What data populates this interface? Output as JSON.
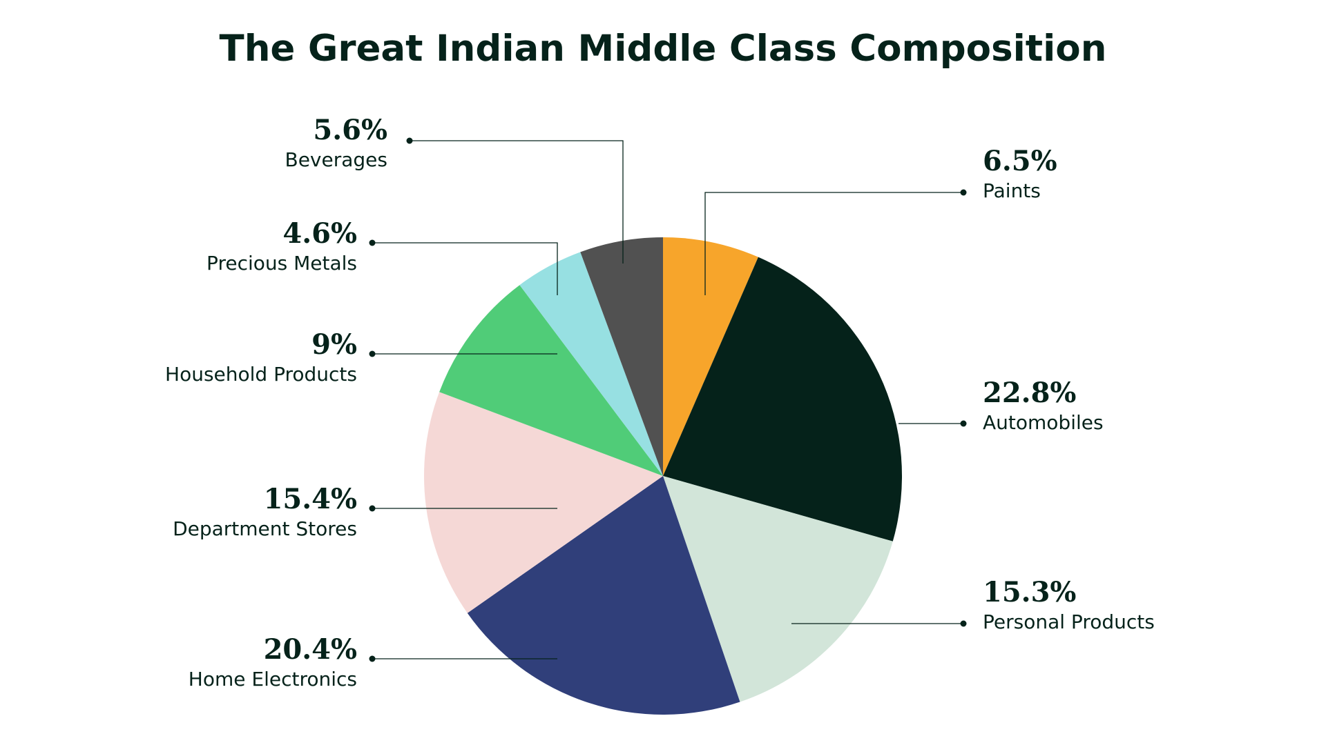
{
  "chart_data": {
    "type": "pie",
    "title": "The Great Indian Middle Class Composition",
    "slices": [
      {
        "label": "Paints",
        "value": 6.5,
        "display": "6.5%",
        "color": "#f7a52b"
      },
      {
        "label": "Automobiles",
        "value": 22.8,
        "display": "22.8%",
        "color": "#05221a"
      },
      {
        "label": "Personal Products",
        "value": 15.3,
        "display": "15.3%",
        "color": "#d2e5d9"
      },
      {
        "label": "Home Electronics",
        "value": 20.4,
        "display": "20.4%",
        "color": "#303f7a"
      },
      {
        "label": "Department Stores",
        "value": 15.4,
        "display": "15.4%",
        "color": "#f5d8d6"
      },
      {
        "label": "Household Products",
        "value": 9,
        "display": "9%",
        "color": "#50cc78"
      },
      {
        "label": "Precious Metals",
        "value": 4.6,
        "display": "4.6%",
        "color": "#97e0e2"
      },
      {
        "label": "Beverages",
        "value": 5.6,
        "display": "5.6%",
        "color": "#515151"
      }
    ],
    "start_angle": "12 o'clock",
    "direction": "clockwise",
    "legend": "none",
    "label_placement": "callouts with leader lines"
  }
}
